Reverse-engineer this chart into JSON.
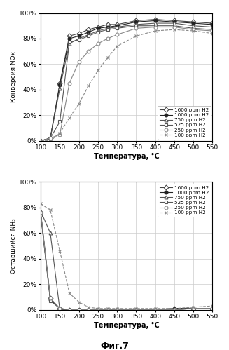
{
  "title_fig": "Фиг.7",
  "temps": [
    100,
    125,
    150,
    175,
    200,
    225,
    250,
    275,
    300,
    350,
    400,
    450,
    500,
    550
  ],
  "top_ylabel": "Конверсия NOх",
  "top_xlabel": "Температура, °C",
  "bottom_ylabel": "Оставшийся NH₃",
  "bottom_xlabel": "Температура, °C",
  "series": [
    {
      "label": "1600 ppm H2",
      "marker": "D",
      "linestyle": "-",
      "color": "#444444",
      "mfc": "white"
    },
    {
      "label": "1000 ppm H2",
      "marker": "o",
      "linestyle": "-",
      "color": "#222222",
      "mfc": "#222222"
    },
    {
      "label": "750 ppm H2",
      "marker": "^",
      "linestyle": "-",
      "color": "#555555",
      "mfc": "white"
    },
    {
      "label": "525 ppm H2",
      "marker": "s",
      "linestyle": "-",
      "color": "#555555",
      "mfc": "white"
    },
    {
      "label": "250 ppm H2",
      "marker": "o",
      "linestyle": "-",
      "color": "#888888",
      "mfc": "white"
    },
    {
      "label": "100 ppm H2",
      "marker": "x",
      "linestyle": "--",
      "color": "#888888",
      "mfc": "white"
    }
  ],
  "top_data": [
    [
      0,
      2,
      45,
      82,
      84,
      87,
      89,
      91,
      91,
      94,
      95,
      94,
      93,
      92
    ],
    [
      0,
      2,
      44,
      80,
      82,
      85,
      88,
      89,
      90,
      93,
      94,
      93,
      92,
      91
    ],
    [
      0,
      2,
      41,
      76,
      80,
      83,
      86,
      88,
      89,
      91,
      92,
      92,
      90,
      89
    ],
    [
      0,
      2,
      15,
      77,
      79,
      82,
      85,
      87,
      88,
      90,
      90,
      90,
      88,
      87
    ],
    [
      0,
      2,
      5,
      45,
      62,
      70,
      76,
      80,
      83,
      88,
      89,
      89,
      87,
      86
    ],
    [
      0,
      0,
      6,
      18,
      29,
      43,
      55,
      65,
      74,
      82,
      86,
      87,
      86,
      84
    ]
  ],
  "bottom_data": [
    [
      76,
      9,
      1,
      0,
      0,
      0,
      0,
      0,
      0,
      0,
      0,
      1,
      1,
      1
    ],
    [
      75,
      8,
      1,
      0,
      0,
      0,
      0,
      0,
      0,
      0,
      0,
      1,
      1,
      1
    ],
    [
      77,
      60,
      0,
      0,
      0,
      0,
      0,
      0,
      0,
      0,
      0,
      0,
      1,
      1
    ],
    [
      74,
      7,
      1,
      0,
      0,
      0,
      0,
      0,
      0,
      0,
      0,
      0,
      1,
      1
    ],
    [
      76,
      9,
      1,
      0,
      0,
      0,
      0,
      0,
      0,
      0,
      0,
      0,
      1,
      1
    ],
    [
      83,
      78,
      46,
      13,
      6,
      2,
      1,
      1,
      1,
      1,
      1,
      1,
      2,
      3
    ]
  ],
  "ylim": [
    0,
    100
  ],
  "xlim": [
    100,
    550
  ],
  "xticks": [
    100,
    150,
    200,
    250,
    300,
    350,
    400,
    450,
    500,
    550
  ],
  "yticks": [
    0,
    20,
    40,
    60,
    80,
    100
  ],
  "ytick_labels": [
    "0%",
    "20%",
    "40%",
    "60%",
    "80%",
    "100%"
  ],
  "bg": "#ffffff",
  "grid_color": "#cccccc"
}
